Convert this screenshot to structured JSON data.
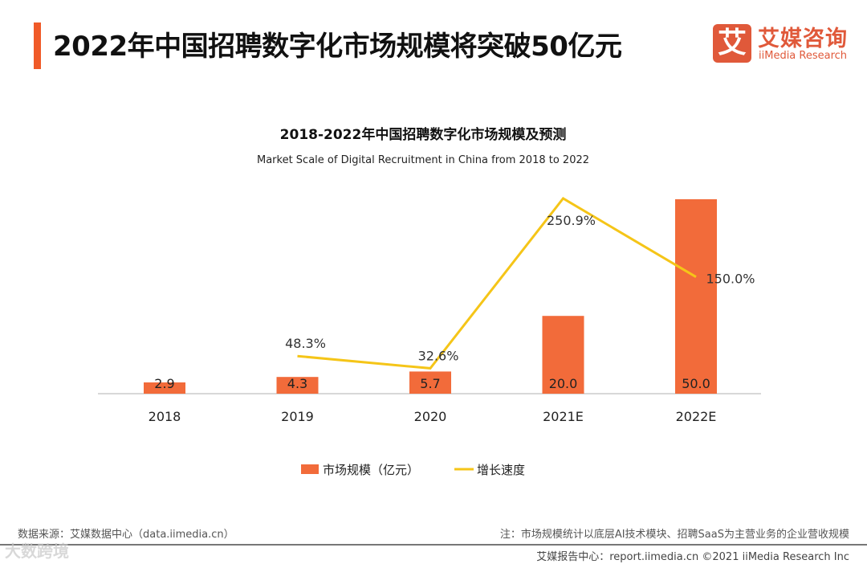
{
  "header": {
    "title": "2022年中国招聘数字化市场规模将突破50亿元"
  },
  "logo": {
    "mark": "艾",
    "cn": "艾媒咨询",
    "en": "iiMedia Research"
  },
  "chart_data": {
    "type": "bar+line",
    "title": "2018-2022年中国招聘数字化市场规模及预测",
    "subtitle": "Market Scale of Digital Recruitment in China from 2018 to 2022",
    "categories": [
      "2018",
      "2019",
      "2020",
      "2021E",
      "2022E"
    ],
    "series": [
      {
        "name": "市场规模（亿元）",
        "type": "bar",
        "color": "#f26b3a",
        "values": [
          2.9,
          4.3,
          5.7,
          20.0,
          50.0
        ],
        "labels": [
          "2.9",
          "4.3",
          "5.7",
          "20.0",
          "50.0"
        ]
      },
      {
        "name": "增长速度",
        "type": "line",
        "color": "#f5c518",
        "values": [
          null,
          48.3,
          32.6,
          250.9,
          150.0
        ],
        "labels": [
          "",
          "48.3%",
          "32.6%",
          "250.9%",
          "150.0%"
        ]
      }
    ],
    "ylim_bar": [
      0,
      50
    ],
    "ylim_line": [
      0,
      250.9
    ],
    "legend": "bottom",
    "grid": false
  },
  "footer": {
    "source": "数据来源：艾媒数据中心（data.iimedia.cn）",
    "note": "注：市场规模统计以底层AI技术模块、招聘SaaS为主营业务的企业营收规模",
    "credit": "艾媒报告中心：report.iimedia.cn ©2021  iiMedia Research  Inc",
    "watermark": "大数跨境"
  }
}
